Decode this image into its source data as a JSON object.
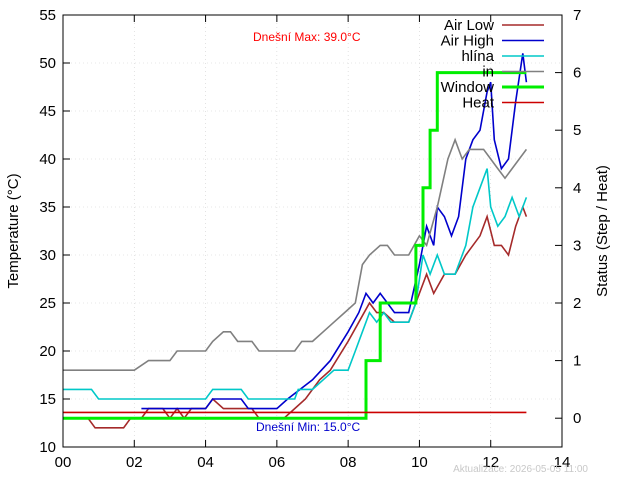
{
  "chart_data": {
    "type": "line",
    "ylabel": "Temperature (°C)",
    "y2label": "Status (Step / Heat)",
    "xlim": [
      0,
      14
    ],
    "ylim": [
      10,
      55
    ],
    "y2lim": [
      -0.5,
      7
    ],
    "x_ticks": [
      "00",
      "02",
      "04",
      "06",
      "08",
      "10",
      "12",
      "14"
    ],
    "y_ticks": [
      "10",
      "15",
      "20",
      "25",
      "30",
      "35",
      "40",
      "45",
      "50",
      "55"
    ],
    "y2_ticks": [
      "0",
      "1",
      "2",
      "3",
      "4",
      "5",
      "6",
      "7"
    ],
    "grid": true,
    "legend_position": "top-right",
    "annotations": {
      "max_text": "Dnešní Max: 39.0°C",
      "min_text": "Dnešní Min: 15.0°C",
      "max_color": "#ff0000",
      "min_color": "#0000cc",
      "footer": "Aktualizace: 2026-05-05 11:00"
    },
    "series": [
      {
        "name": "Air Low",
        "axis": "y",
        "color": "#a52a2a",
        "points": [
          [
            0,
            13
          ],
          [
            0.7,
            13
          ],
          [
            0.9,
            12
          ],
          [
            1.7,
            12
          ],
          [
            1.9,
            13
          ],
          [
            2.2,
            13
          ],
          [
            2.4,
            14
          ],
          [
            2.8,
            14
          ],
          [
            3.0,
            13
          ],
          [
            3.2,
            14
          ],
          [
            3.4,
            13
          ],
          [
            3.6,
            14
          ],
          [
            4.0,
            14
          ],
          [
            4.2,
            15
          ],
          [
            4.5,
            14
          ],
          [
            5.3,
            14
          ],
          [
            5.5,
            13
          ],
          [
            6.2,
            13
          ],
          [
            6.5,
            14
          ],
          [
            6.8,
            15
          ],
          [
            7.2,
            17
          ],
          [
            7.5,
            18
          ],
          [
            8.0,
            21
          ],
          [
            8.3,
            23
          ],
          [
            8.6,
            25
          ],
          [
            8.8,
            24
          ],
          [
            9.0,
            24
          ],
          [
            9.3,
            23
          ],
          [
            9.7,
            23
          ],
          [
            10.0,
            26
          ],
          [
            10.2,
            28
          ],
          [
            10.4,
            26
          ],
          [
            10.7,
            28
          ],
          [
            11.0,
            28
          ],
          [
            11.3,
            30
          ],
          [
            11.7,
            32
          ],
          [
            11.9,
            34
          ],
          [
            12.1,
            31
          ],
          [
            12.3,
            31
          ],
          [
            12.5,
            30
          ],
          [
            12.7,
            33
          ],
          [
            12.9,
            35
          ],
          [
            13.0,
            34
          ]
        ]
      },
      {
        "name": "Air High",
        "axis": "y",
        "color": "#0000cc",
        "points": [
          [
            2.2,
            14
          ],
          [
            3.0,
            14
          ],
          [
            4.0,
            14
          ],
          [
            4.2,
            15
          ],
          [
            5.0,
            15
          ],
          [
            5.2,
            14
          ],
          [
            6.0,
            14
          ],
          [
            6.3,
            15
          ],
          [
            7.0,
            17
          ],
          [
            7.5,
            19
          ],
          [
            8.0,
            22
          ],
          [
            8.3,
            24
          ],
          [
            8.5,
            26
          ],
          [
            8.7,
            25
          ],
          [
            8.9,
            26
          ],
          [
            9.1,
            25
          ],
          [
            9.3,
            24
          ],
          [
            9.7,
            24
          ],
          [
            10.0,
            29
          ],
          [
            10.2,
            33
          ],
          [
            10.4,
            31
          ],
          [
            10.5,
            35
          ],
          [
            10.7,
            34
          ],
          [
            10.9,
            32
          ],
          [
            11.1,
            34
          ],
          [
            11.3,
            40
          ],
          [
            11.5,
            42
          ],
          [
            11.7,
            43
          ],
          [
            11.9,
            47
          ],
          [
            12.0,
            48
          ],
          [
            12.1,
            42
          ],
          [
            12.3,
            39
          ],
          [
            12.5,
            40
          ],
          [
            12.7,
            46
          ],
          [
            12.9,
            51
          ],
          [
            13.0,
            48
          ]
        ]
      },
      {
        "name": "hlína",
        "axis": "y",
        "color": "#00c8c8",
        "points": [
          [
            0,
            16
          ],
          [
            0.8,
            16
          ],
          [
            1.0,
            15
          ],
          [
            4.0,
            15
          ],
          [
            4.2,
            16
          ],
          [
            5.0,
            16
          ],
          [
            5.2,
            15
          ],
          [
            6.5,
            15
          ],
          [
            6.6,
            16
          ],
          [
            7.0,
            16
          ],
          [
            7.3,
            17
          ],
          [
            7.6,
            18
          ],
          [
            8.0,
            18
          ],
          [
            8.2,
            20
          ],
          [
            8.4,
            22
          ],
          [
            8.6,
            24
          ],
          [
            8.8,
            23
          ],
          [
            9.0,
            24
          ],
          [
            9.2,
            23
          ],
          [
            9.7,
            23
          ],
          [
            9.9,
            25
          ],
          [
            10.1,
            30
          ],
          [
            10.3,
            28
          ],
          [
            10.5,
            30
          ],
          [
            10.7,
            28
          ],
          [
            11.0,
            28
          ],
          [
            11.3,
            31
          ],
          [
            11.5,
            35
          ],
          [
            11.7,
            37
          ],
          [
            11.9,
            39
          ],
          [
            12.0,
            35
          ],
          [
            12.2,
            33
          ],
          [
            12.4,
            34
          ],
          [
            12.6,
            36
          ],
          [
            12.8,
            34
          ],
          [
            13.0,
            36
          ]
        ]
      },
      {
        "name": "in",
        "axis": "y",
        "color": "#808080",
        "points": [
          [
            0,
            18
          ],
          [
            1.0,
            18
          ],
          [
            2.0,
            18
          ],
          [
            2.4,
            19
          ],
          [
            3.0,
            19
          ],
          [
            3.2,
            20
          ],
          [
            4.0,
            20
          ],
          [
            4.2,
            21
          ],
          [
            4.5,
            22
          ],
          [
            4.7,
            22
          ],
          [
            4.9,
            21
          ],
          [
            5.3,
            21
          ],
          [
            5.5,
            20
          ],
          [
            6.5,
            20
          ],
          [
            6.7,
            21
          ],
          [
            7.0,
            21
          ],
          [
            7.3,
            22
          ],
          [
            7.6,
            23
          ],
          [
            7.9,
            24
          ],
          [
            8.2,
            25
          ],
          [
            8.4,
            29
          ],
          [
            8.6,
            30
          ],
          [
            8.9,
            31
          ],
          [
            9.1,
            31
          ],
          [
            9.3,
            30
          ],
          [
            9.7,
            30
          ],
          [
            10.0,
            32
          ],
          [
            10.2,
            31
          ],
          [
            10.5,
            35
          ],
          [
            10.8,
            40
          ],
          [
            11.0,
            42
          ],
          [
            11.2,
            40
          ],
          [
            11.4,
            41
          ],
          [
            11.6,
            41
          ],
          [
            11.8,
            41
          ],
          [
            12.0,
            40
          ],
          [
            12.2,
            39
          ],
          [
            12.4,
            38
          ],
          [
            12.6,
            39
          ],
          [
            13.0,
            41
          ]
        ]
      },
      {
        "name": "Window",
        "axis": "y2",
        "color": "#00ee00",
        "width": 3,
        "points": [
          [
            0,
            0
          ],
          [
            8.5,
            0
          ],
          [
            8.5,
            1
          ],
          [
            8.9,
            1
          ],
          [
            8.9,
            2
          ],
          [
            9.9,
            2
          ],
          [
            9.9,
            3
          ],
          [
            10.1,
            3
          ],
          [
            10.1,
            4
          ],
          [
            10.3,
            4
          ],
          [
            10.3,
            5
          ],
          [
            10.5,
            5
          ],
          [
            10.5,
            6
          ],
          [
            13.0,
            6
          ]
        ]
      },
      {
        "name": "Heat",
        "axis": "y2",
        "color": "#cc0000",
        "points": [
          [
            0,
            0.1
          ],
          [
            13.0,
            0.1
          ]
        ]
      }
    ]
  }
}
